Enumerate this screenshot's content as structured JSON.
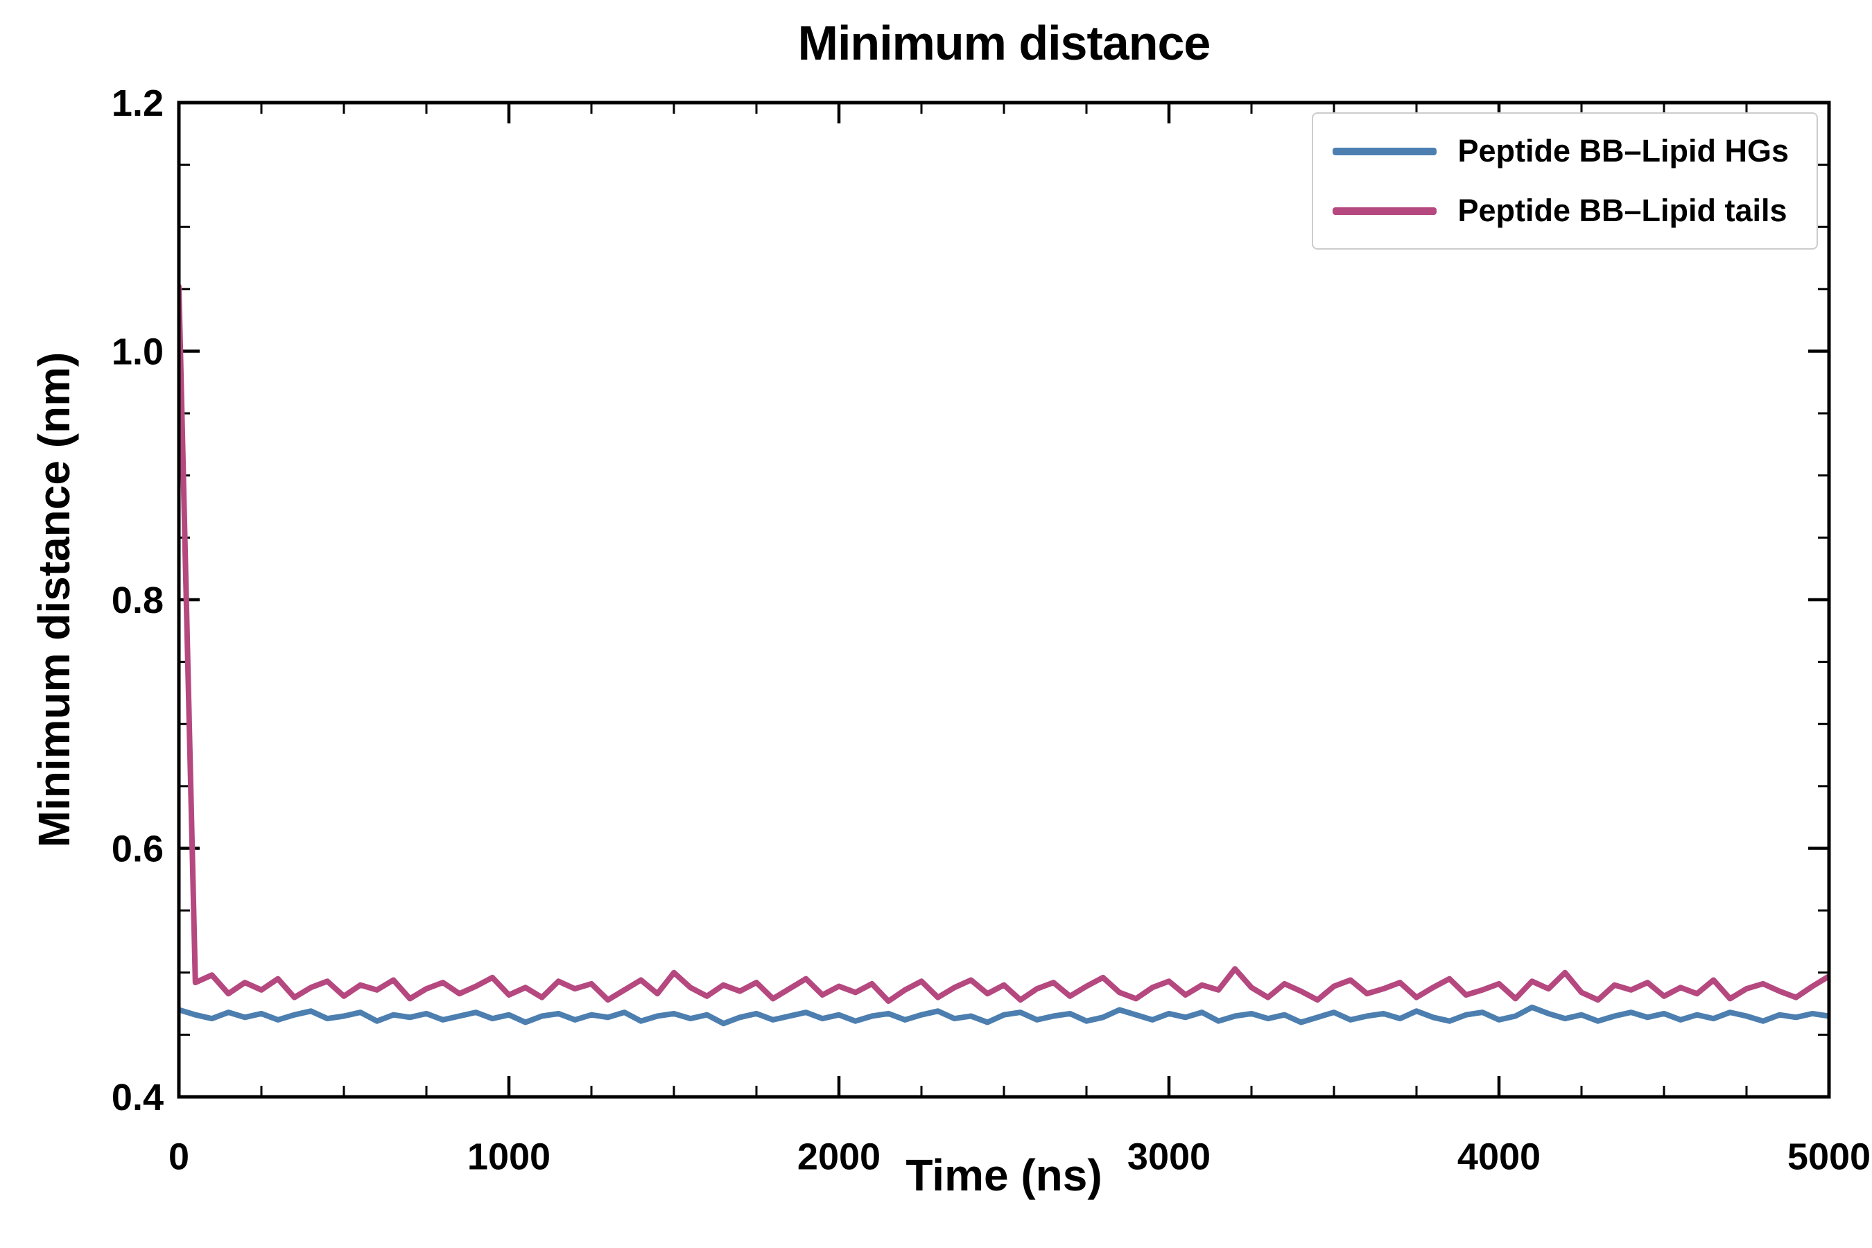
{
  "title": "Minimum distance",
  "chart_data": {
    "type": "line",
    "title": "Minimum distance",
    "xlabel": "Time (ns)",
    "ylabel": "Minimum distance (nm)",
    "xlim": [
      0,
      5000
    ],
    "ylim": [
      0.4,
      1.2
    ],
    "x_ticks": [
      0,
      1000,
      2000,
      3000,
      4000,
      5000
    ],
    "y_ticks": [
      0.4,
      0.6,
      0.8,
      1.0,
      1.2
    ],
    "x_minor_step": 250,
    "y_minor_step": 0.05,
    "grid": false,
    "legend_position": "upper right",
    "x_start": 0,
    "x_step": 50,
    "series": [
      {
        "name": "Peptide BB–Lipid HGs",
        "color": "#4c7fb0",
        "values": [
          0.47,
          0.466,
          0.463,
          0.468,
          0.464,
          0.467,
          0.462,
          0.466,
          0.469,
          0.463,
          0.465,
          0.468,
          0.461,
          0.466,
          0.464,
          0.467,
          0.462,
          0.465,
          0.468,
          0.463,
          0.466,
          0.46,
          0.465,
          0.467,
          0.462,
          0.466,
          0.464,
          0.468,
          0.461,
          0.465,
          0.467,
          0.463,
          0.466,
          0.459,
          0.464,
          0.467,
          0.462,
          0.465,
          0.468,
          0.463,
          0.466,
          0.461,
          0.465,
          0.467,
          0.462,
          0.466,
          0.469,
          0.463,
          0.465,
          0.46,
          0.466,
          0.468,
          0.462,
          0.465,
          0.467,
          0.461,
          0.464,
          0.47,
          0.466,
          0.462,
          0.467,
          0.464,
          0.468,
          0.461,
          0.465,
          0.467,
          0.463,
          0.466,
          0.46,
          0.464,
          0.468,
          0.462,
          0.465,
          0.467,
          0.463,
          0.469,
          0.464,
          0.461,
          0.466,
          0.468,
          0.462,
          0.465,
          0.472,
          0.467,
          0.463,
          0.466,
          0.461,
          0.465,
          0.468,
          0.464,
          0.467,
          0.462,
          0.466,
          0.463,
          0.468,
          0.465,
          0.461,
          0.466,
          0.464,
          0.467,
          0.465
        ]
      },
      {
        "name": "Peptide BB–Lipid tails",
        "color": "#b5487f",
        "values": [
          1.052,
          0.492,
          0.498,
          0.483,
          0.492,
          0.486,
          0.495,
          0.48,
          0.488,
          0.493,
          0.481,
          0.49,
          0.486,
          0.494,
          0.479,
          0.487,
          0.492,
          0.483,
          0.489,
          0.496,
          0.482,
          0.488,
          0.48,
          0.493,
          0.487,
          0.491,
          0.478,
          0.486,
          0.494,
          0.483,
          0.5,
          0.488,
          0.481,
          0.49,
          0.485,
          0.492,
          0.479,
          0.487,
          0.495,
          0.482,
          0.489,
          0.484,
          0.491,
          0.477,
          0.486,
          0.493,
          0.48,
          0.488,
          0.494,
          0.483,
          0.49,
          0.478,
          0.487,
          0.492,
          0.481,
          0.489,
          0.496,
          0.484,
          0.479,
          0.488,
          0.493,
          0.482,
          0.49,
          0.486,
          0.503,
          0.488,
          0.48,
          0.491,
          0.485,
          0.478,
          0.489,
          0.494,
          0.483,
          0.487,
          0.492,
          0.48,
          0.488,
          0.495,
          0.482,
          0.486,
          0.491,
          0.479,
          0.493,
          0.487,
          0.5,
          0.484,
          0.478,
          0.49,
          0.486,
          0.492,
          0.481,
          0.488,
          0.483,
          0.494,
          0.479,
          0.487,
          0.491,
          0.485,
          0.48,
          0.489,
          0.497
        ]
      }
    ]
  }
}
